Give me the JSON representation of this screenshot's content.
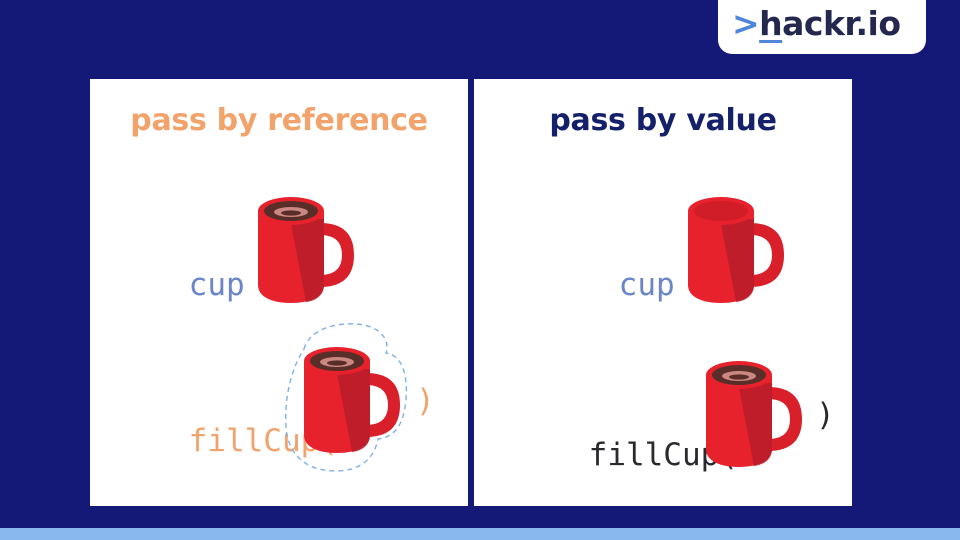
{
  "logo": {
    "arrow": ">",
    "h": "h",
    "rest": "ackr.io"
  },
  "left_panel": {
    "heading": "pass by reference",
    "line1": {
      "var": "cup",
      "op": "="
    },
    "line2": {
      "call": "fillCup(",
      "close": ")"
    }
  },
  "right_panel": {
    "heading": "pass by value",
    "line1": {
      "var": "cup",
      "op": "="
    },
    "line2": {
      "call": "fillCup(",
      "close": ")"
    }
  },
  "colors": {
    "background": "#141877",
    "reference_accent": "#f2a36b",
    "value_accent": "#142069",
    "variable": "#6a86c7",
    "mug_red": "#e5212b",
    "coffee": "#5a2e28",
    "highlight_outline": "#7fb0e6"
  }
}
